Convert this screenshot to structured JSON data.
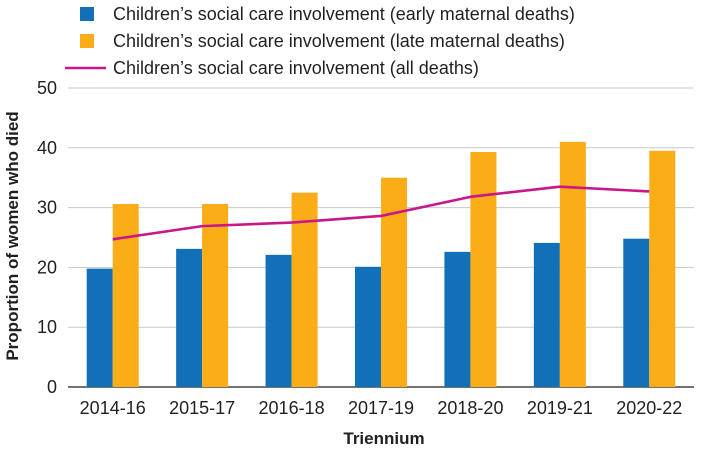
{
  "chart_data": {
    "type": "bar",
    "title": "",
    "xlabel": "Triennium",
    "ylabel": "Proportion of women who died",
    "ylim": [
      0,
      50
    ],
    "yticks": [
      0,
      10,
      20,
      30,
      40,
      50
    ],
    "grid": true,
    "legend_position": "top-left",
    "categories": [
      "2014-16",
      "2015-17",
      "2016-18",
      "2017-19",
      "2018-20",
      "2019-21",
      "2020-22"
    ],
    "series": [
      {
        "name": "Children’s social care involvement (early maternal deaths)",
        "type": "bar",
        "color": "#1170b8",
        "values": [
          19.8,
          23.1,
          22.1,
          20.1,
          22.6,
          24.1,
          24.8
        ]
      },
      {
        "name": "Children’s social care involvement (late maternal deaths)",
        "type": "bar",
        "color": "#fbad18",
        "values": [
          30.6,
          30.6,
          32.5,
          35.0,
          39.3,
          41.0,
          39.5
        ]
      },
      {
        "name": "Children’s social care involvement (all deaths)",
        "type": "line",
        "color": "#c8178b",
        "values": [
          24.7,
          26.9,
          27.5,
          28.6,
          31.8,
          33.5,
          32.7
        ]
      }
    ]
  }
}
